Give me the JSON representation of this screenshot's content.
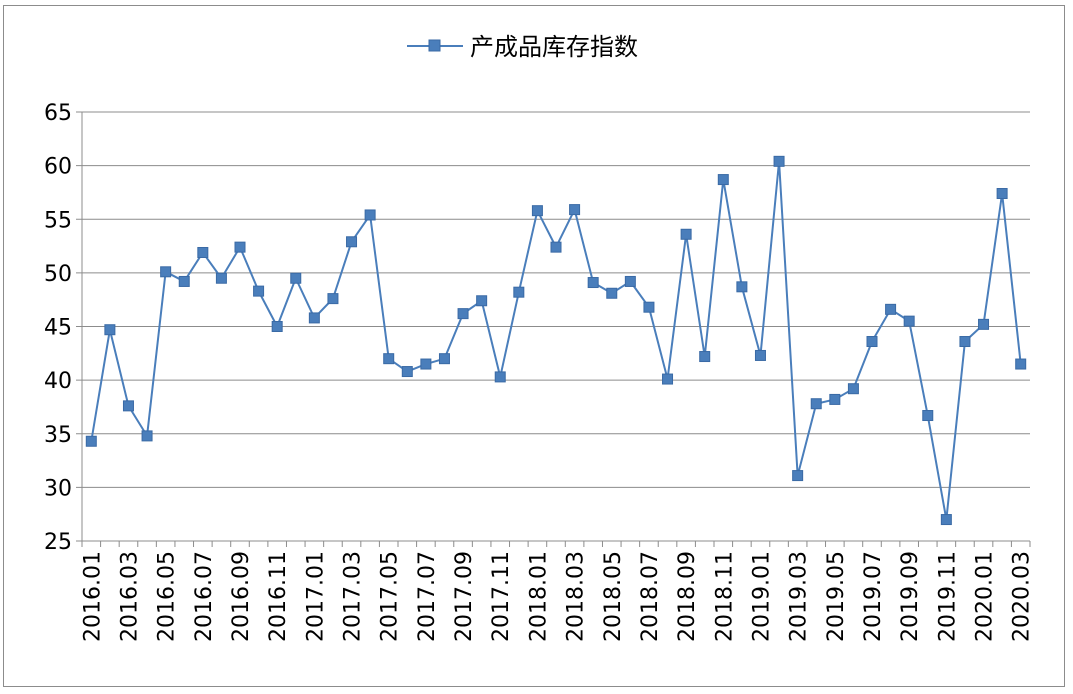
{
  "chart_data": {
    "type": "line",
    "title": "",
    "xlabel": "",
    "ylabel": "",
    "ylim": [
      25,
      65
    ],
    "yticks": [
      25,
      30,
      35,
      40,
      45,
      50,
      55,
      60,
      65
    ],
    "grid": true,
    "legend_position": "top-center",
    "categories": [
      "2016.01",
      "2016.02",
      "2016.03",
      "2016.04",
      "2016.05",
      "2016.06",
      "2016.07",
      "2016.08",
      "2016.09",
      "2016.10",
      "2016.11",
      "2016.12",
      "2017.01",
      "2017.02",
      "2017.03",
      "2017.04",
      "2017.05",
      "2017.06",
      "2017.07",
      "2017.08",
      "2017.09",
      "2017.10",
      "2017.11",
      "2017.12",
      "2018.01",
      "2018.02",
      "2018.03",
      "2018.04",
      "2018.05",
      "2018.06",
      "2018.07",
      "2018.08",
      "2018.09",
      "2018.10",
      "2018.11",
      "2018.12",
      "2019.01",
      "2019.02",
      "2019.03",
      "2019.04",
      "2019.05",
      "2019.06",
      "2019.07",
      "2019.08",
      "2019.09",
      "2019.10",
      "2019.11",
      "2019.12",
      "2020.01",
      "2020.02",
      "2020.03"
    ],
    "x_tick_labels": [
      "2016.01",
      "2016.03",
      "2016.05",
      "2016.07",
      "2016.09",
      "2016.11",
      "2017.01",
      "2017.03",
      "2017.05",
      "2017.07",
      "2017.09",
      "2017.11",
      "2018.01",
      "2018.03",
      "2018.05",
      "2018.07",
      "2018.09",
      "2018.11",
      "2019.01",
      "2019.03",
      "2019.05",
      "2019.07",
      "2019.09",
      "2019.11",
      "2020.01",
      "2020.03"
    ],
    "series": [
      {
        "name": "产成品库存指数",
        "color": "#4a7ebb",
        "marker": "square",
        "values": [
          34.3,
          44.7,
          37.6,
          34.8,
          50.1,
          49.2,
          51.9,
          49.5,
          52.4,
          48.3,
          45.0,
          49.5,
          45.8,
          47.6,
          52.9,
          55.4,
          42.0,
          40.8,
          41.5,
          42.0,
          46.2,
          47.4,
          40.3,
          48.2,
          55.8,
          52.4,
          55.9,
          49.1,
          48.1,
          49.2,
          46.8,
          40.1,
          53.6,
          42.2,
          58.7,
          48.7,
          42.3,
          60.4,
          31.1,
          37.8,
          38.2,
          39.2,
          43.6,
          46.6,
          45.5,
          36.7,
          27.0,
          43.6,
          45.2,
          57.4,
          41.5
        ]
      }
    ]
  }
}
